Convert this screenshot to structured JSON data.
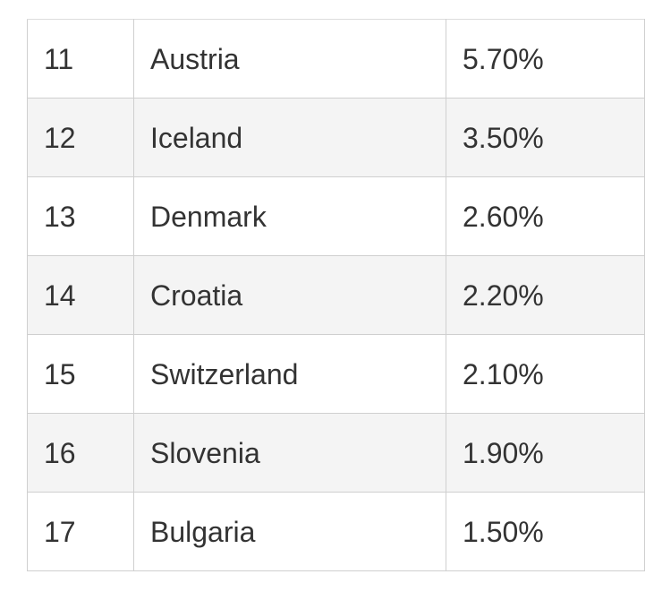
{
  "table": {
    "rows": [
      {
        "rank": "11",
        "country": "Austria",
        "percent": "5.70%"
      },
      {
        "rank": "12",
        "country": "Iceland",
        "percent": "3.50%"
      },
      {
        "rank": "13",
        "country": "Denmark",
        "percent": "2.60%"
      },
      {
        "rank": "14",
        "country": "Croatia",
        "percent": "2.20%"
      },
      {
        "rank": "15",
        "country": "Switzerland",
        "percent": "2.10%"
      },
      {
        "rank": "16",
        "country": "Slovenia",
        "percent": "1.90%"
      },
      {
        "rank": "17",
        "country": "Bulgaria",
        "percent": "1.50%"
      }
    ]
  },
  "colors": {
    "text": "#333333",
    "border": "#cfcfcf",
    "alt_row_bg": "#f4f4f4",
    "row_bg": "#ffffff"
  }
}
